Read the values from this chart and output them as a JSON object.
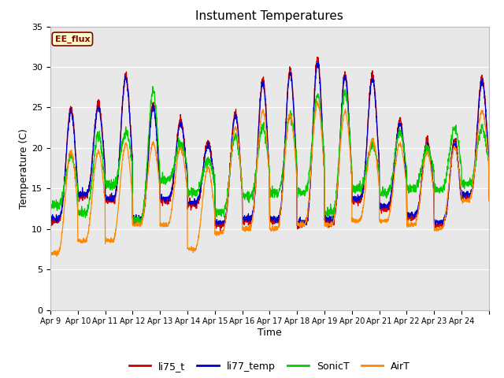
{
  "title": "Instument Temperatures",
  "xlabel": "Time",
  "ylabel": "Temperature (C)",
  "ylim": [
    0,
    35
  ],
  "background_color": "#e8e8e8",
  "figure_color": "#ffffff",
  "annotation_text": "EE_flux",
  "annotation_bg": "#ffffcc",
  "annotation_border": "#8b0000",
  "gridcolor": "#ffffff",
  "legend_labels": [
    "li75_t",
    "li77_temp",
    "SonicT",
    "AirT"
  ],
  "line_colors": [
    "#cc0000",
    "#0000cc",
    "#00cc00",
    "#ff8800"
  ],
  "date_labels": [
    "Apr 9",
    "Apr 10",
    "Apr 11",
    "Apr 12",
    "Apr 13",
    "Apr 14",
    "Apr 15",
    "Apr 16",
    "Apr 17",
    "Apr 18",
    "Apr 19",
    "Apr 20",
    "Apr 21",
    "Apr 22",
    "Apr 23",
    "Apr 24"
  ],
  "n_days": 16,
  "yticks": [
    0,
    5,
    10,
    15,
    20,
    25,
    30,
    35
  ],
  "daily_peaks": [
    25.0,
    25.5,
    29.0,
    25.5,
    23.5,
    20.8,
    24.5,
    28.5,
    29.7,
    31.0,
    29.3,
    29.0,
    23.5,
    21.0,
    21.0,
    28.7
  ],
  "daily_mins": [
    11.0,
    14.0,
    13.5,
    11.0,
    13.5,
    13.0,
    10.5,
    11.0,
    11.0,
    10.5,
    11.0,
    13.5,
    12.5,
    11.5,
    10.5,
    14.0
  ],
  "airT_peaks": [
    19.5,
    19.5,
    20.5,
    20.5,
    20.0,
    17.5,
    22.5,
    24.5,
    24.0,
    25.5,
    24.5,
    21.0,
    20.5,
    19.5,
    20.0,
    24.5
  ],
  "airT_mins": [
    7.0,
    8.5,
    8.5,
    10.5,
    10.5,
    7.5,
    9.5,
    10.0,
    10.0,
    10.5,
    10.5,
    11.0,
    11.0,
    10.5,
    10.0,
    13.5
  ],
  "sonicT_peaks": [
    19.0,
    21.5,
    22.0,
    27.0,
    20.5,
    18.5,
    21.5,
    22.5,
    24.0,
    26.5,
    27.0,
    20.5,
    22.0,
    20.0,
    22.5,
    22.5
  ],
  "sonicT_mins": [
    13.0,
    12.0,
    15.5,
    11.0,
    16.0,
    14.5,
    12.0,
    14.0,
    14.5,
    14.5,
    12.0,
    15.0,
    14.5,
    15.0,
    15.0,
    15.5
  ],
  "peak_sharpness": 3.5,
  "peak_hour": 14.0,
  "trough_hour": 6.0
}
